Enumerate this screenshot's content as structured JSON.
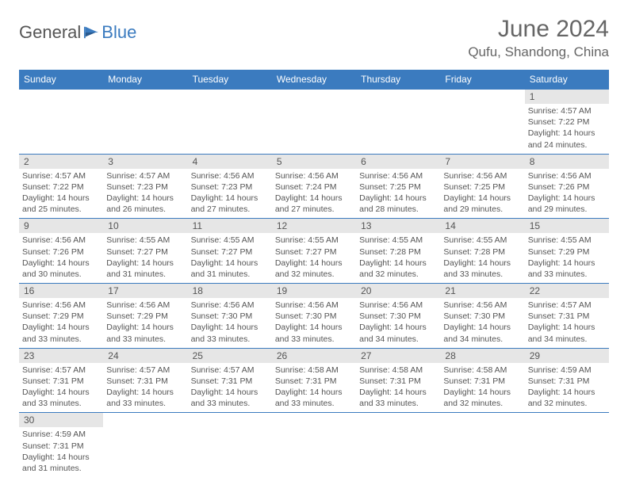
{
  "logo": {
    "text1": "General",
    "text2": "Blue"
  },
  "title": "June 2024",
  "location": "Qufu, Shandong, China",
  "colors": {
    "header_bg": "#3b7bbf",
    "header_text": "#ffffff",
    "daynum_bg": "#e6e6e6",
    "border": "#3b7bbf",
    "body_text": "#555555",
    "accent": "#3b7bbf"
  },
  "weekdays": [
    "Sunday",
    "Monday",
    "Tuesday",
    "Wednesday",
    "Thursday",
    "Friday",
    "Saturday"
  ],
  "weeks": [
    [
      null,
      null,
      null,
      null,
      null,
      null,
      {
        "n": "1",
        "sr": "4:57 AM",
        "ss": "7:22 PM",
        "dl": "14 hours and 24 minutes."
      }
    ],
    [
      {
        "n": "2",
        "sr": "4:57 AM",
        "ss": "7:22 PM",
        "dl": "14 hours and 25 minutes."
      },
      {
        "n": "3",
        "sr": "4:57 AM",
        "ss": "7:23 PM",
        "dl": "14 hours and 26 minutes."
      },
      {
        "n": "4",
        "sr": "4:56 AM",
        "ss": "7:23 PM",
        "dl": "14 hours and 27 minutes."
      },
      {
        "n": "5",
        "sr": "4:56 AM",
        "ss": "7:24 PM",
        "dl": "14 hours and 27 minutes."
      },
      {
        "n": "6",
        "sr": "4:56 AM",
        "ss": "7:25 PM",
        "dl": "14 hours and 28 minutes."
      },
      {
        "n": "7",
        "sr": "4:56 AM",
        "ss": "7:25 PM",
        "dl": "14 hours and 29 minutes."
      },
      {
        "n": "8",
        "sr": "4:56 AM",
        "ss": "7:26 PM",
        "dl": "14 hours and 29 minutes."
      }
    ],
    [
      {
        "n": "9",
        "sr": "4:56 AM",
        "ss": "7:26 PM",
        "dl": "14 hours and 30 minutes."
      },
      {
        "n": "10",
        "sr": "4:55 AM",
        "ss": "7:27 PM",
        "dl": "14 hours and 31 minutes."
      },
      {
        "n": "11",
        "sr": "4:55 AM",
        "ss": "7:27 PM",
        "dl": "14 hours and 31 minutes."
      },
      {
        "n": "12",
        "sr": "4:55 AM",
        "ss": "7:27 PM",
        "dl": "14 hours and 32 minutes."
      },
      {
        "n": "13",
        "sr": "4:55 AM",
        "ss": "7:28 PM",
        "dl": "14 hours and 32 minutes."
      },
      {
        "n": "14",
        "sr": "4:55 AM",
        "ss": "7:28 PM",
        "dl": "14 hours and 33 minutes."
      },
      {
        "n": "15",
        "sr": "4:55 AM",
        "ss": "7:29 PM",
        "dl": "14 hours and 33 minutes."
      }
    ],
    [
      {
        "n": "16",
        "sr": "4:56 AM",
        "ss": "7:29 PM",
        "dl": "14 hours and 33 minutes."
      },
      {
        "n": "17",
        "sr": "4:56 AM",
        "ss": "7:29 PM",
        "dl": "14 hours and 33 minutes."
      },
      {
        "n": "18",
        "sr": "4:56 AM",
        "ss": "7:30 PM",
        "dl": "14 hours and 33 minutes."
      },
      {
        "n": "19",
        "sr": "4:56 AM",
        "ss": "7:30 PM",
        "dl": "14 hours and 33 minutes."
      },
      {
        "n": "20",
        "sr": "4:56 AM",
        "ss": "7:30 PM",
        "dl": "14 hours and 34 minutes."
      },
      {
        "n": "21",
        "sr": "4:56 AM",
        "ss": "7:30 PM",
        "dl": "14 hours and 34 minutes."
      },
      {
        "n": "22",
        "sr": "4:57 AM",
        "ss": "7:31 PM",
        "dl": "14 hours and 34 minutes."
      }
    ],
    [
      {
        "n": "23",
        "sr": "4:57 AM",
        "ss": "7:31 PM",
        "dl": "14 hours and 33 minutes."
      },
      {
        "n": "24",
        "sr": "4:57 AM",
        "ss": "7:31 PM",
        "dl": "14 hours and 33 minutes."
      },
      {
        "n": "25",
        "sr": "4:57 AM",
        "ss": "7:31 PM",
        "dl": "14 hours and 33 minutes."
      },
      {
        "n": "26",
        "sr": "4:58 AM",
        "ss": "7:31 PM",
        "dl": "14 hours and 33 minutes."
      },
      {
        "n": "27",
        "sr": "4:58 AM",
        "ss": "7:31 PM",
        "dl": "14 hours and 33 minutes."
      },
      {
        "n": "28",
        "sr": "4:58 AM",
        "ss": "7:31 PM",
        "dl": "14 hours and 32 minutes."
      },
      {
        "n": "29",
        "sr": "4:59 AM",
        "ss": "7:31 PM",
        "dl": "14 hours and 32 minutes."
      }
    ],
    [
      {
        "n": "30",
        "sr": "4:59 AM",
        "ss": "7:31 PM",
        "dl": "14 hours and 31 minutes."
      },
      null,
      null,
      null,
      null,
      null,
      null
    ]
  ],
  "labels": {
    "sunrise": "Sunrise:",
    "sunset": "Sunset:",
    "daylight": "Daylight:"
  }
}
